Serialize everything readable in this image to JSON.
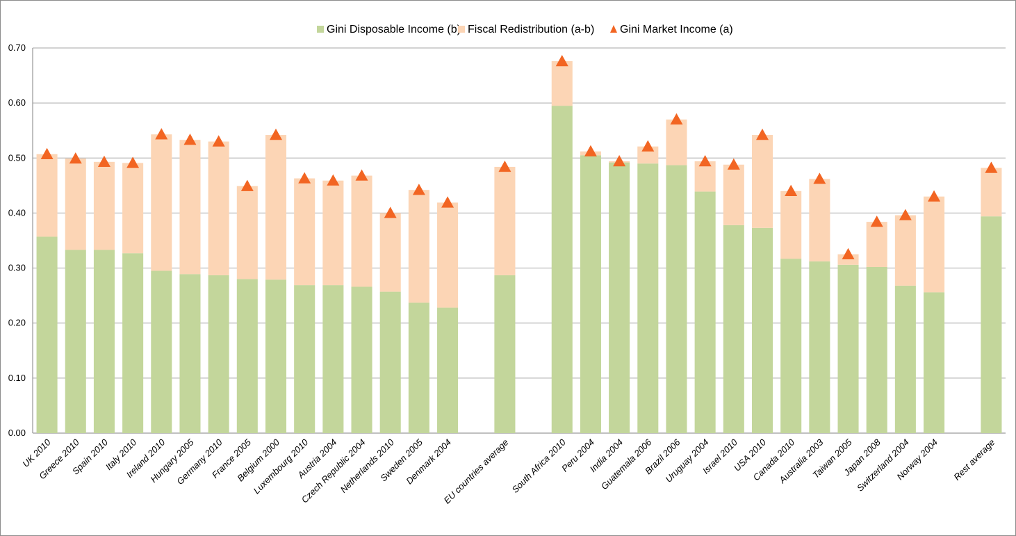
{
  "chart_data": {
    "type": "bar",
    "stacked": true,
    "categories": [
      "UK 2010",
      "Greece 2010",
      "Spain 2010",
      "Italy 2010",
      "Ireland 2010",
      "Hungary 2005",
      "Germany 2010",
      "France 2005",
      "Belgium 2000",
      "Luxembourg 2010",
      "Austria 2004",
      "Czech Republic 2004",
      "Netherlands 2010",
      "Sweden 2005",
      "Denmark 2004",
      "",
      "EU countries average",
      "",
      "South Africa 2010",
      "Peru 2004",
      "India 2004",
      "Guatemala 2006",
      "Brazil 2006",
      "Uruguay 2004",
      "Israel 2010",
      "USA 2010",
      "Canada 2010",
      "Australia 2003",
      "Taiwan 2005",
      "Japan 2008",
      "Switzerland 2004",
      "Norway 2004",
      "",
      "Rest average"
    ],
    "series": [
      {
        "name": "Gini Disposable Income (b)",
        "kind": "bar",
        "color": "#c3d69b",
        "values": [
          0.357,
          0.333,
          0.333,
          0.327,
          0.295,
          0.289,
          0.287,
          0.28,
          0.279,
          0.269,
          0.269,
          0.266,
          0.257,
          0.237,
          0.228,
          null,
          0.287,
          null,
          0.595,
          0.505,
          0.492,
          0.49,
          0.487,
          0.439,
          0.378,
          0.373,
          0.317,
          0.312,
          0.306,
          0.302,
          0.268,
          0.256,
          null,
          0.394
        ]
      },
      {
        "name": "Fiscal Redistribution (a-b)",
        "kind": "bar",
        "color": "#fcd5b5",
        "values": [
          0.15,
          0.166,
          0.16,
          0.164,
          0.248,
          0.244,
          0.243,
          0.169,
          0.263,
          0.194,
          0.19,
          0.202,
          0.143,
          0.205,
          0.191,
          null,
          0.197,
          null,
          0.081,
          0.007,
          0.002,
          0.031,
          0.083,
          0.055,
          0.11,
          0.169,
          0.123,
          0.15,
          0.019,
          0.082,
          0.128,
          0.174,
          null,
          0.088
        ]
      },
      {
        "name": "Gini Market Income (a)",
        "kind": "marker",
        "color": "#f26522",
        "values": [
          0.507,
          0.499,
          0.493,
          0.491,
          0.543,
          0.533,
          0.53,
          0.449,
          0.542,
          0.463,
          0.459,
          0.468,
          0.4,
          0.442,
          0.419,
          null,
          0.484,
          null,
          0.676,
          0.512,
          0.494,
          0.521,
          0.57,
          0.494,
          0.488,
          0.542,
          0.44,
          0.462,
          0.325,
          0.384,
          0.396,
          0.43,
          null,
          0.482
        ]
      }
    ],
    "y_ticks": [
      "0.00",
      "0.10",
      "0.20",
      "0.30",
      "0.40",
      "0.50",
      "0.60",
      "0.70"
    ],
    "ylim": [
      0,
      0.7
    ],
    "grid": true,
    "legend_position": "top-center",
    "title": "",
    "xlabel": "",
    "ylabel": ""
  }
}
